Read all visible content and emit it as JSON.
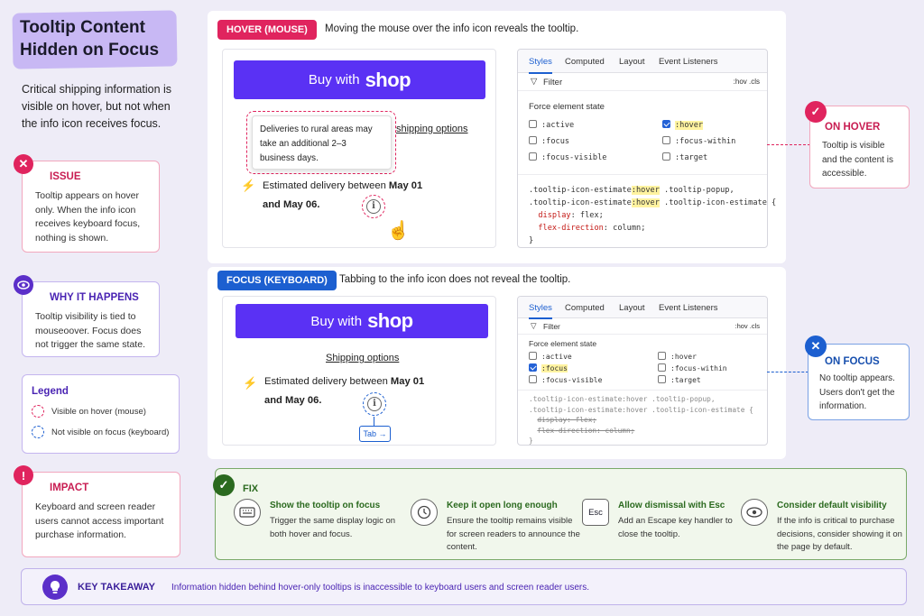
{
  "title": "Tooltip Content Hidden on Focus",
  "intro": "Critical shipping information is visible on hover, but not when the info icon receives focus.",
  "issue": {
    "heading": "ISSUE",
    "body": "Tooltip appears on hover only. When the info icon receives keyboard focus, nothing is shown."
  },
  "why": {
    "heading": "WHY IT HAPPENS",
    "body": "Tooltip visibility is tied to mouseoover. Focus does not trigger the same state."
  },
  "legend": {
    "heading": "Legend",
    "items": [
      "Visible on hover (mouse)",
      "Not visible on focus (keyboard)"
    ]
  },
  "impact": {
    "heading": "IMPACT",
    "body": "Keyboard and screen reader users cannot access important purchase information."
  },
  "hover_panel": {
    "pill": "HOVER (MOUSE)",
    "caption": "Moving the mouse over the info icon reveals the tooltip.",
    "buy_label": "Buy with",
    "shop_word": "shop",
    "tooltip": "Deliveries to rural areas may take an additional 2–3 business days.",
    "shipping_link": "shipping options",
    "delivery_prefix": "Estimated delivery between",
    "delivery_dates_1": "May 01",
    "delivery_and": "and",
    "delivery_dates_2": "May 06.",
    "info_glyph": "i"
  },
  "focus_panel": {
    "pill": "FOCUS (KEYBOARD)",
    "caption": "Tabbing to the info icon does not reveal the tooltip.",
    "buy_label": "Buy with",
    "shop_word": "shop",
    "shipping_link": "Shipping options",
    "delivery_prefix": "Estimated delivery between",
    "delivery_dates_1": "May 01",
    "delivery_and": "and",
    "delivery_dates_2": "May 06.",
    "info_glyph": "i",
    "tab_label": "Tab →"
  },
  "devtools": {
    "tabs": [
      "Styles",
      "Computed",
      "Layout",
      "Event Listeners"
    ],
    "filter": "Filter",
    "filter_right": ":hov .cls",
    "force_state": "Force element state",
    "states": [
      ":active",
      ":hover",
      ":focus",
      ":focus-within",
      ":focus-visible",
      ":target"
    ],
    "hover_css": [
      ".tooltip-icon-estimate",
      ":hover",
      " .tooltip-popup,",
      ".tooltip-icon-estimate",
      ":hover",
      " .tooltip-icon-estimate {",
      "display",
      ": flex;",
      "flex-direction",
      ": column;",
      "}"
    ],
    "focus_css": [
      ".tooltip-icon-estimate:hover .tooltip-popup,",
      ".tooltip-icon-estimate:hover .tooltip-icon-estimate {",
      "display: flex;",
      "flex-direction: column;",
      "}"
    ]
  },
  "on_hover": {
    "heading": "ON HOVER",
    "body": "Tooltip is visible and the content is accessible."
  },
  "on_focus": {
    "heading": "ON FOCUS",
    "body": "No tooltip appears. Users don't get the information."
  },
  "fix": {
    "heading": "FIX",
    "items": [
      {
        "title": "Show the tooltip on focus",
        "body": "Trigger the same display logic on both hover and focus.",
        "icon": "keyboard-icon"
      },
      {
        "title": "Keep it open long enough",
        "body": "Ensure the tooltip remains visible for screen readers to announce the content.",
        "icon": "clock-icon"
      },
      {
        "title": "Allow dismissal with Esc",
        "body": "Add an Escape key handler to close the tooltip.",
        "icon": "esc-key-icon",
        "glyph": "Esc"
      },
      {
        "title": "Consider default visibility",
        "body": "If the info is critical to purchase decisions, consider showing it on the page by default.",
        "icon": "eye-icon"
      }
    ]
  },
  "takeaway": {
    "heading": "KEY TAKEAWAY",
    "body": "Information hidden behind hover-only tooltips is inaccessible to keyboard users and screen reader users."
  },
  "colors": {
    "issue": "#e0245e",
    "why": "#5b2fc9",
    "hover": "#e0245e",
    "focus": "#1c5fd0",
    "fix": "#2b6a1f",
    "shop": "#5a31f4"
  }
}
